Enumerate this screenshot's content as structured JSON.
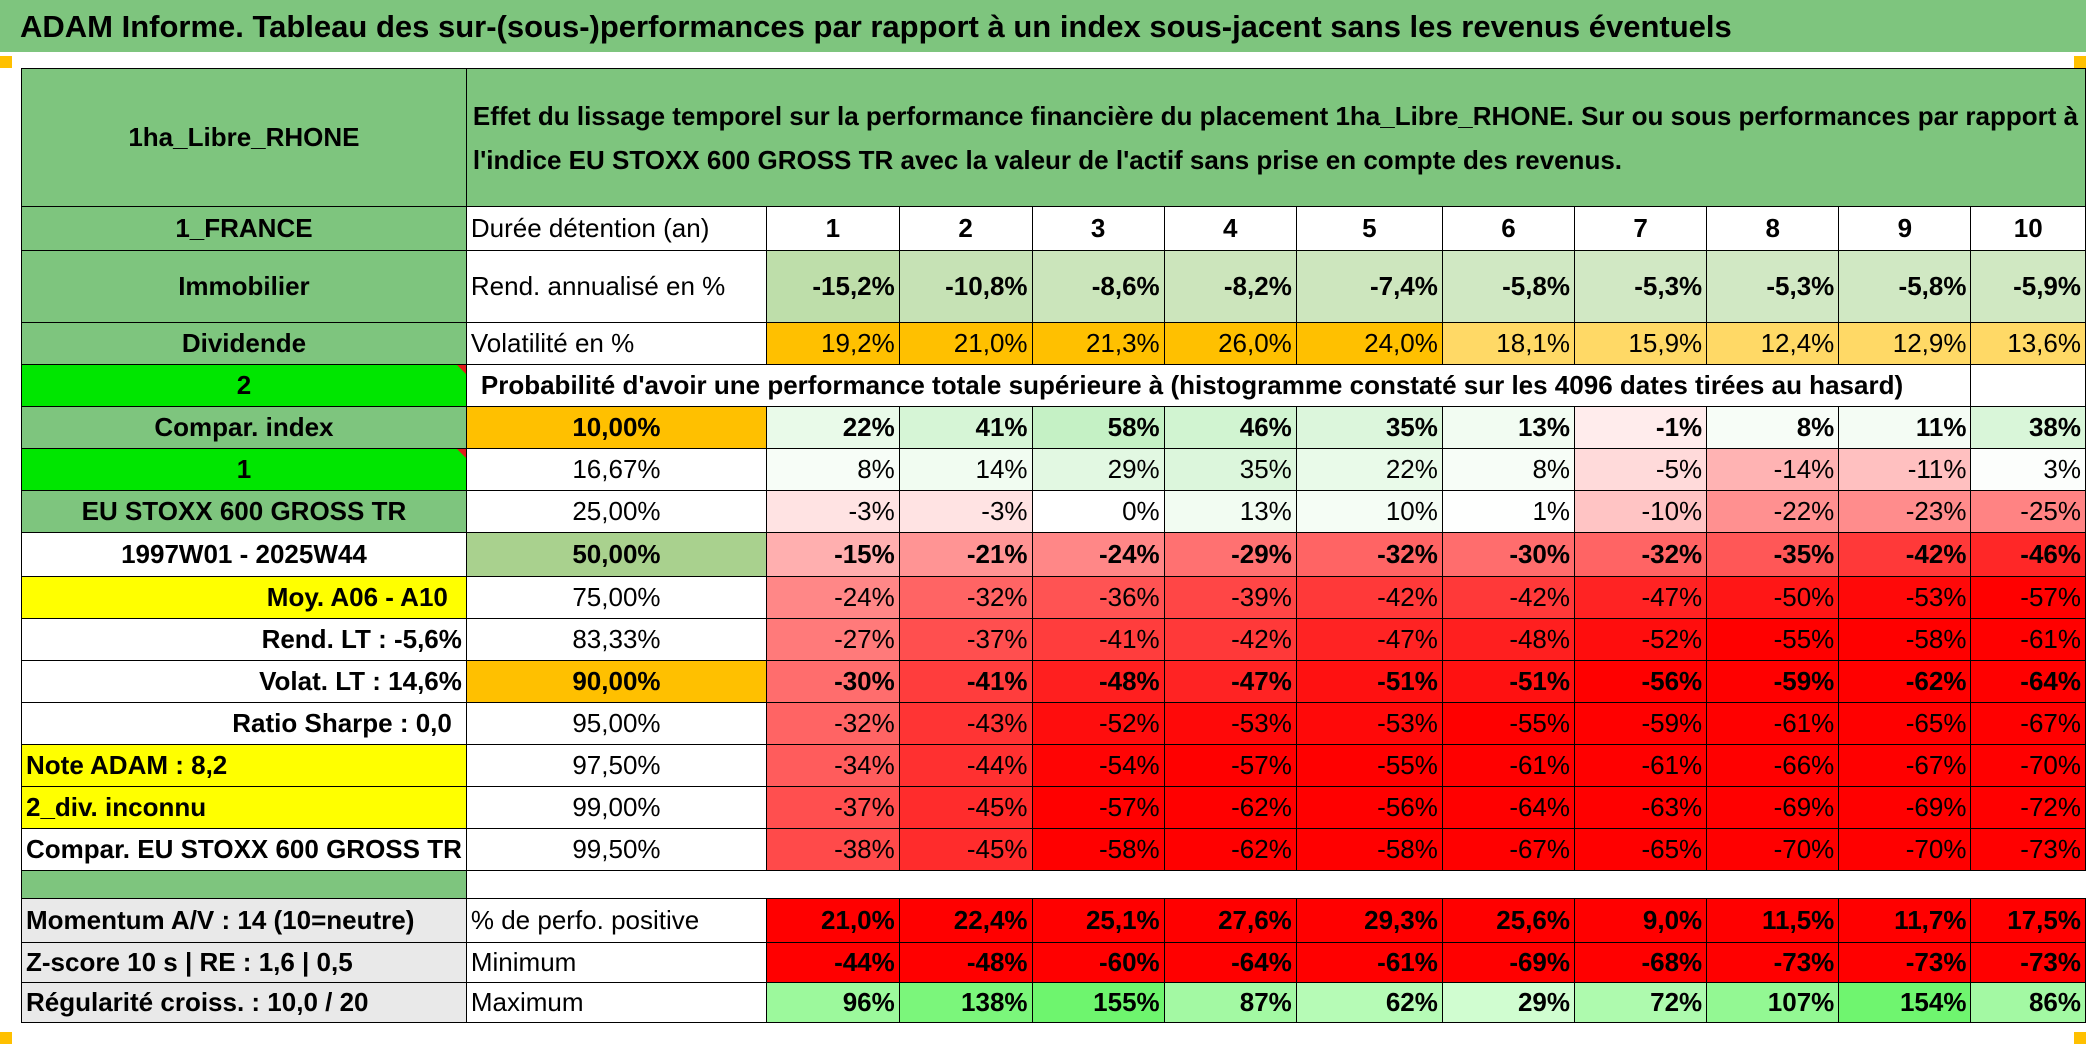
{
  "report_title": "ADAM Informe. Tableau des sur-(sous-)performances par rapport à un index sous-jacent sans les revenus éventuels",
  "header": {
    "fund_name": "1ha_Libre_RHONE",
    "description": "Effet du lissage temporel sur la performance financière du placement 1ha_Libre_RHONE. Sur ou sous performances par rapport à l'indice EU STOXX 600 GROSS TR avec la valeur de l'actif sans prise en compte des revenus."
  },
  "left": {
    "country": "1_FRANCE",
    "category": "Immobilier",
    "type": "Dividende",
    "num_2": "2",
    "compar_index": "Compar. index",
    "num_1": "1",
    "index_name": "EU STOXX 600 GROSS TR",
    "period": "1997W01 - 2025W44",
    "moy": "Moy. A06 - A10",
    "rend_lt": "Rend. LT :   -5,6%",
    "volat_lt": "Volat. LT :   14,6%",
    "sharpe": "Ratio Sharpe :    0,0",
    "note": "Note ADAM : 8,2",
    "div": "2_div. inconnu",
    "compar_full": "Compar. EU STOXX 600 GROSS TR",
    "momentum": "Momentum A/V : 14 (10=neutre)",
    "zscore": "Z-score 10 s | RE : 1,6 | 0,5",
    "regularite": "Régularité croiss. : 10,0 / 20"
  },
  "stats": {
    "duration_label": "Durée détention (an)",
    "years": [
      "1",
      "2",
      "3",
      "4",
      "5",
      "6",
      "7",
      "8",
      "9",
      "10"
    ],
    "rend_label": "Rend. annualisé en %",
    "rend": [
      "-15,2%",
      "-10,8%",
      "-8,6%",
      "-8,2%",
      "-7,4%",
      "-5,8%",
      "-5,3%",
      "-5,3%",
      "-5,8%",
      "-5,9%"
    ],
    "vol_label": "Volatilité en %",
    "vol": [
      "19,2%",
      "21,0%",
      "21,3%",
      "26,0%",
      "24,0%",
      "18,1%",
      "15,9%",
      "12,4%",
      "12,9%",
      "13,6%"
    ]
  },
  "probability_title": "Probabilité d'avoir une performance totale supérieure à (histogramme constaté sur les 4096 dates tirées au hasard)",
  "quantiles": [
    {
      "p": "10,00%",
      "v": [
        "22%",
        "41%",
        "58%",
        "46%",
        "35%",
        "13%",
        "-1%",
        "8%",
        "11%",
        "38%"
      ]
    },
    {
      "p": "16,67%",
      "v": [
        "8%",
        "14%",
        "29%",
        "35%",
        "22%",
        "8%",
        "-5%",
        "-14%",
        "-11%",
        "3%"
      ]
    },
    {
      "p": "25,00%",
      "v": [
        "-3%",
        "-3%",
        "0%",
        "13%",
        "10%",
        "1%",
        "-10%",
        "-22%",
        "-23%",
        "-25%"
      ]
    },
    {
      "p": "50,00%",
      "v": [
        "-15%",
        "-21%",
        "-24%",
        "-29%",
        "-32%",
        "-30%",
        "-32%",
        "-35%",
        "-42%",
        "-46%"
      ]
    },
    {
      "p": "75,00%",
      "v": [
        "-24%",
        "-32%",
        "-36%",
        "-39%",
        "-42%",
        "-42%",
        "-47%",
        "-50%",
        "-53%",
        "-57%"
      ]
    },
    {
      "p": "83,33%",
      "v": [
        "-27%",
        "-37%",
        "-41%",
        "-42%",
        "-47%",
        "-48%",
        "-52%",
        "-55%",
        "-58%",
        "-61%"
      ]
    },
    {
      "p": "90,00%",
      "v": [
        "-30%",
        "-41%",
        "-48%",
        "-47%",
        "-51%",
        "-51%",
        "-56%",
        "-59%",
        "-62%",
        "-64%"
      ]
    },
    {
      "p": "95,00%",
      "v": [
        "-32%",
        "-43%",
        "-52%",
        "-53%",
        "-53%",
        "-55%",
        "-59%",
        "-61%",
        "-65%",
        "-67%"
      ]
    },
    {
      "p": "97,50%",
      "v": [
        "-34%",
        "-44%",
        "-54%",
        "-57%",
        "-55%",
        "-61%",
        "-61%",
        "-66%",
        "-67%",
        "-70%"
      ]
    },
    {
      "p": "99,00%",
      "v": [
        "-37%",
        "-45%",
        "-57%",
        "-62%",
        "-56%",
        "-64%",
        "-63%",
        "-69%",
        "-69%",
        "-72%"
      ]
    },
    {
      "p": "99,50%",
      "v": [
        "-38%",
        "-45%",
        "-58%",
        "-62%",
        "-58%",
        "-67%",
        "-65%",
        "-70%",
        "-70%",
        "-73%"
      ]
    }
  ],
  "bottom": {
    "pos_label": "% de perfo. positive",
    "pos": [
      "21,0%",
      "22,4%",
      "25,1%",
      "27,6%",
      "29,3%",
      "25,6%",
      "9,0%",
      "11,5%",
      "11,7%",
      "17,5%"
    ],
    "min_label": "Minimum",
    "min": [
      "-44%",
      "-48%",
      "-60%",
      "-64%",
      "-61%",
      "-69%",
      "-68%",
      "-73%",
      "-73%",
      "-73%"
    ],
    "max_label": "Maximum",
    "max": [
      "96%",
      "138%",
      "155%",
      "87%",
      "62%",
      "29%",
      "72%",
      "107%",
      "154%",
      "86%"
    ]
  },
  "colors": {
    "header_green": "#7ec57e",
    "bright_green": "#00e600",
    "yellow": "#ffff00",
    "orange": "#ffc000",
    "label_red": "#e21b1b"
  }
}
